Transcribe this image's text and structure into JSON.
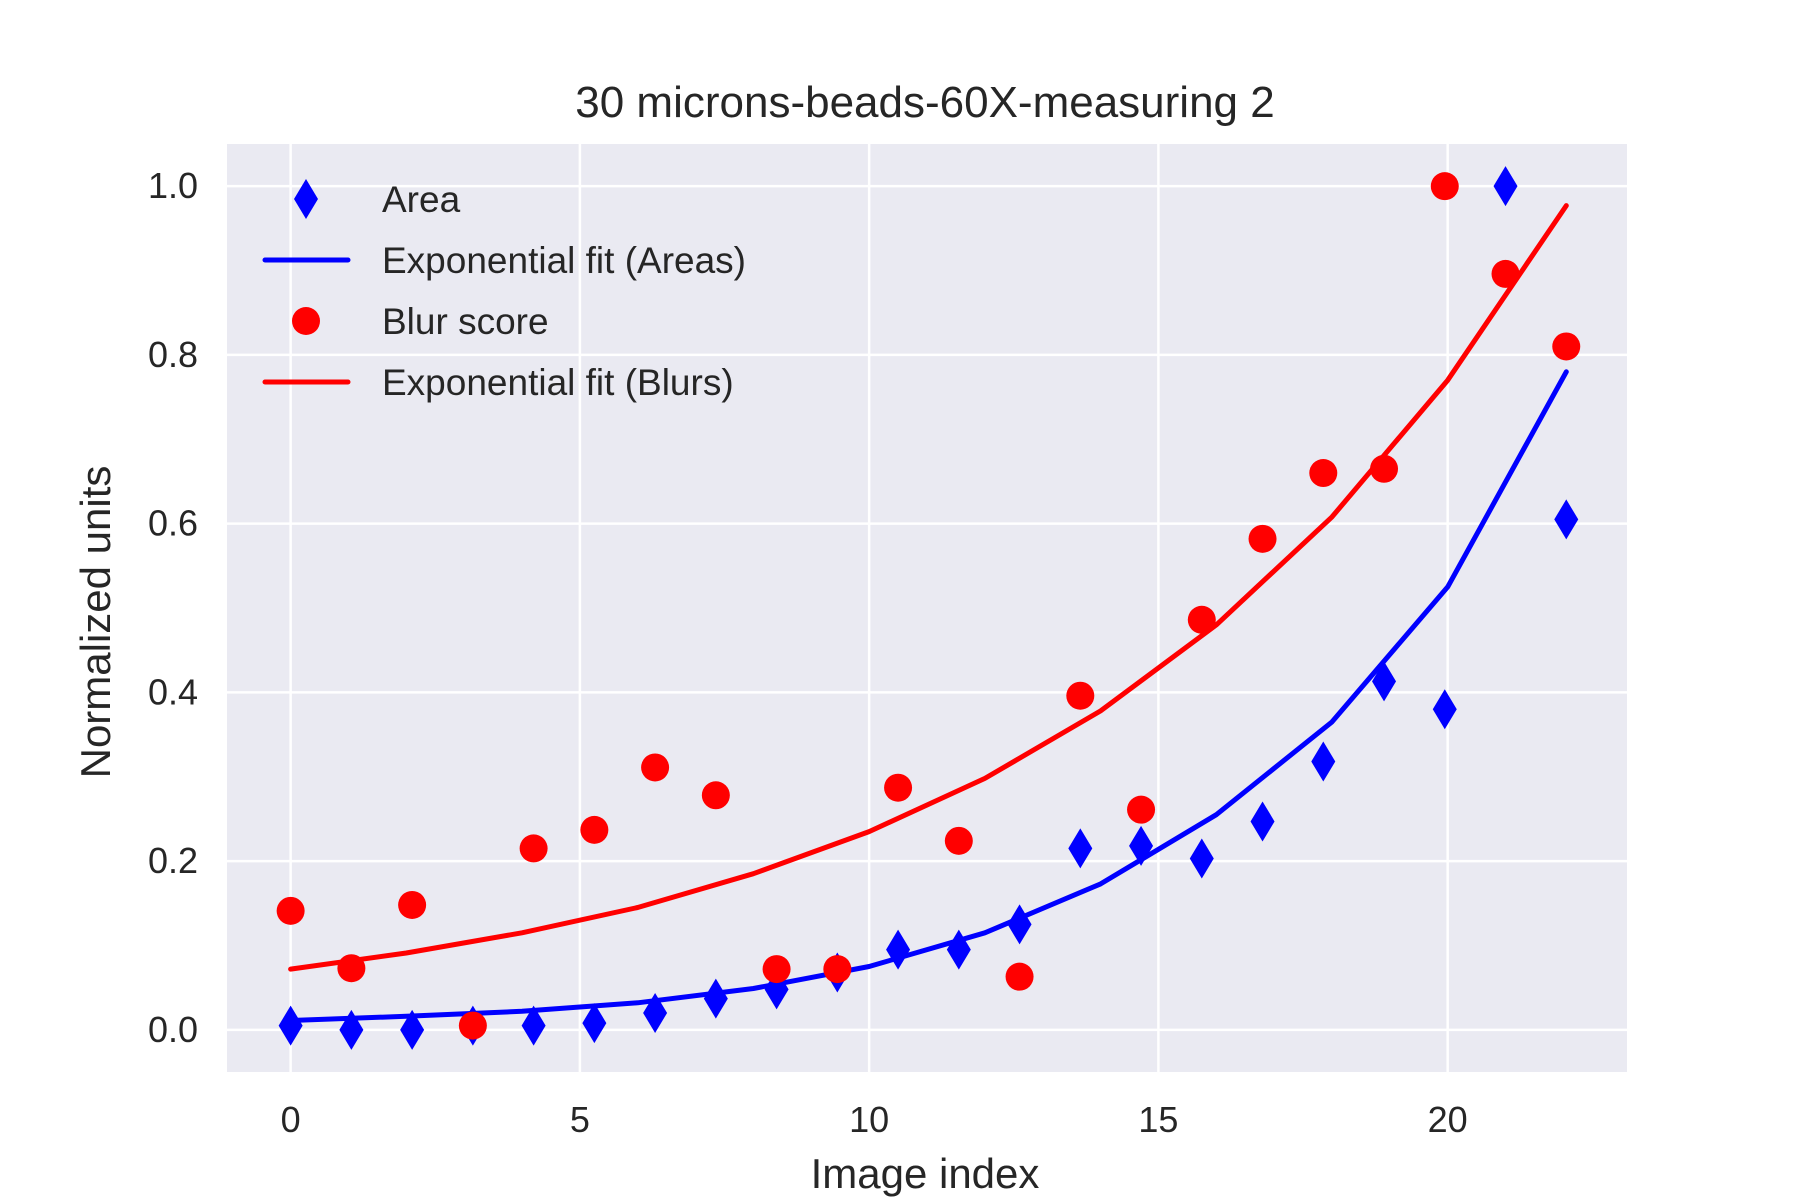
{
  "chart_data": {
    "type": "scatter",
    "title": "30 microns-beads-60X-measuring 2",
    "xlabel": "Image index",
    "ylabel": "Normalized units",
    "xlim": [
      -1.1,
      23.1
    ],
    "ylim": [
      -0.05,
      1.05
    ],
    "x_ticks": [
      0,
      5,
      10,
      15,
      20
    ],
    "x_tick_labels": [
      "0",
      "5",
      "10",
      "15",
      "20"
    ],
    "y_ticks": [
      0.0,
      0.2,
      0.4,
      0.6,
      0.8,
      1.0
    ],
    "y_tick_labels": [
      "0.0",
      "0.2",
      "0.4",
      "0.6",
      "0.8",
      "1.0"
    ],
    "grid": true,
    "legend_position": "top-left",
    "background_color": "#eaeaf2",
    "grid_color": "#ffffff",
    "series": [
      {
        "name": "Area",
        "kind": "scatter",
        "marker": "diamond",
        "color": "#0000ff",
        "x": [
          0,
          1.05,
          2.1,
          3.15,
          4.2,
          5.25,
          6.3,
          7.35,
          8.4,
          9.45,
          10.5,
          11.55,
          12.6,
          13.65,
          14.7,
          15.75,
          16.8,
          17.85,
          18.9,
          19.95,
          21.0,
          22.05
        ],
        "y": [
          0.005,
          0.0,
          0.0,
          0.005,
          0.005,
          0.008,
          0.02,
          0.037,
          0.048,
          0.068,
          0.095,
          0.095,
          0.125,
          0.215,
          0.218,
          0.203,
          0.247,
          0.318,
          0.413,
          0.38,
          1.0,
          0.605
        ]
      },
      {
        "name": "Exponential fit (Areas)",
        "kind": "line",
        "color": "#0000ff",
        "x": [
          0,
          2,
          4,
          6,
          8,
          10,
          12,
          14,
          16,
          18,
          20,
          22.05
        ],
        "y": [
          0.011,
          0.016,
          0.022,
          0.032,
          0.049,
          0.075,
          0.115,
          0.173,
          0.255,
          0.365,
          0.525,
          0.78
        ]
      },
      {
        "name": "Blur score",
        "kind": "scatter",
        "marker": "circle",
        "color": "#ff0000",
        "x": [
          0,
          1.05,
          2.1,
          3.15,
          4.2,
          5.25,
          6.3,
          7.35,
          8.4,
          9.45,
          10.5,
          11.55,
          12.6,
          13.65,
          14.7,
          15.75,
          16.8,
          17.85,
          18.9,
          19.95,
          21.0,
          22.05
        ],
        "y": [
          0.141,
          0.073,
          0.148,
          0.005,
          0.215,
          0.237,
          0.311,
          0.278,
          0.072,
          0.072,
          0.287,
          0.224,
          0.063,
          0.396,
          0.261,
          0.486,
          0.582,
          0.66,
          0.665,
          1.0,
          0.896,
          0.81
        ]
      },
      {
        "name": "Exponential fit (Blurs)",
        "kind": "line",
        "color": "#ff0000",
        "x": [
          0,
          2,
          4,
          6,
          8,
          10,
          12,
          14,
          16,
          18,
          20,
          22.05
        ],
        "y": [
          0.072,
          0.091,
          0.115,
          0.145,
          0.185,
          0.235,
          0.298,
          0.378,
          0.48,
          0.608,
          0.77,
          0.977
        ]
      }
    ]
  }
}
